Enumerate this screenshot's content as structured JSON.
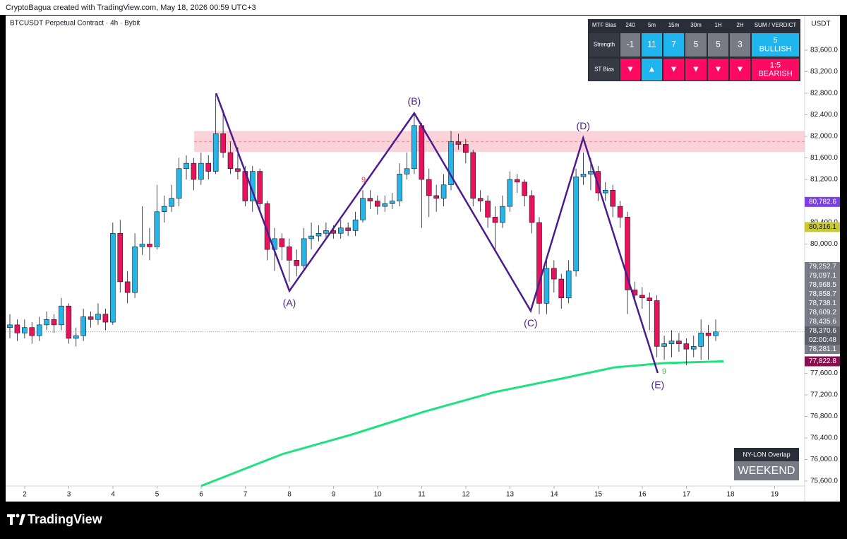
{
  "header": {
    "text": "CryptoBagua created with TradingView.com, May 18, 2026 00:59 UTC+3"
  },
  "chart_data": {
    "type": "candlestick",
    "title": "BTCUSDT Perpetual Contract · 4h · Bybit",
    "currency": "USDT",
    "up_color": "#26b5e8",
    "down_color": "#e8115a",
    "open": [
      78450,
      78500,
      78350,
      78450,
      78300,
      78500,
      78600,
      78500,
      78850,
      78250,
      78300,
      78650,
      78600,
      78700,
      78550,
      80200,
      79300,
      79100,
      79950,
      80000,
      79950,
      80600,
      80700,
      80850,
      81400,
      81500,
      81200,
      81500,
      81350,
      82050,
      81700,
      81400,
      81350,
      80800,
      81350,
      80750,
      79900,
      80100,
      79950,
      79700,
      79600,
      80100,
      80150,
      80200,
      80250,
      80200,
      80300,
      80250,
      80450,
      80850,
      80800,
      80700,
      80750,
      80800,
      81300,
      81400,
      82200,
      81200,
      80900,
      80850,
      81100,
      81900,
      81850,
      81700,
      80850,
      80800,
      80500,
      80400,
      80700,
      81200,
      81150,
      80900,
      80400,
      78900,
      79550,
      79350,
      79000,
      79500,
      81250,
      81300,
      81350,
      80950,
      81000,
      80700,
      80500,
      79150,
      79050,
      79000,
      78950,
      78100,
      78150,
      78200,
      78150,
      78050,
      78100,
      78350,
      78300
    ],
    "high": [
      78700,
      78600,
      78600,
      78550,
      78650,
      78750,
      78700,
      79000,
      78900,
      78450,
      78800,
      78750,
      78900,
      78800,
      80400,
      80450,
      79500,
      80200,
      80700,
      80300,
      81100,
      80900,
      81100,
      81600,
      81650,
      81600,
      81700,
      81650,
      82800,
      82500,
      81900,
      81800,
      81450,
      81450,
      81400,
      80800,
      80300,
      80200,
      80100,
      79900,
      80300,
      80400,
      80350,
      80400,
      80350,
      80450,
      80400,
      80600,
      81000,
      81000,
      80900,
      80900,
      80950,
      81500,
      81700,
      82450,
      82250,
      81400,
      81100,
      81300,
      82100,
      82050,
      81950,
      81750,
      81000,
      80900,
      80700,
      80900,
      81350,
      81300,
      81200,
      81000,
      80500,
      79700,
      79700,
      79450,
      79700,
      81400,
      81700,
      81600,
      81450,
      81150,
      81100,
      80800,
      80600,
      79300,
      79200,
      79100,
      79050,
      78300,
      78400,
      78350,
      78250,
      78300,
      78600,
      78500,
      78600
    ],
    "low": [
      78250,
      78200,
      78250,
      78150,
      78200,
      78400,
      78350,
      78400,
      78150,
      78100,
      78200,
      78450,
      78500,
      78400,
      78500,
      79100,
      78900,
      79000,
      79800,
      79700,
      79900,
      80400,
      80600,
      80700,
      81200,
      81000,
      81100,
      81200,
      81300,
      81600,
      81300,
      81200,
      80700,
      80600,
      80600,
      79700,
      79500,
      79700,
      79300,
      79400,
      79500,
      79900,
      80050,
      80100,
      80100,
      80100,
      80150,
      80150,
      80400,
      80650,
      80550,
      80600,
      80650,
      80700,
      81200,
      81300,
      80300,
      80500,
      80600,
      80700,
      81000,
      81750,
      81500,
      80700,
      80600,
      80300,
      79900,
      80300,
      80600,
      80950,
      80700,
      80200,
      78700,
      78700,
      79100,
      78800,
      78900,
      79400,
      81100,
      81000,
      80800,
      80800,
      80500,
      80300,
      78700,
      78900,
      78800,
      78400,
      77900,
      77850,
      77900,
      78000,
      77750,
      77900,
      77850,
      77850,
      78200
    ],
    "close": [
      78500,
      78350,
      78450,
      78300,
      78500,
      78600,
      78500,
      78850,
      78250,
      78300,
      78650,
      78600,
      78700,
      78550,
      80200,
      79300,
      79100,
      79950,
      80000,
      79950,
      80600,
      80700,
      80850,
      81400,
      81500,
      81200,
      81500,
      81350,
      82050,
      81700,
      81400,
      81350,
      80800,
      81350,
      80750,
      79900,
      80100,
      79950,
      79700,
      79600,
      80100,
      80150,
      80200,
      80250,
      80200,
      80300,
      80250,
      80450,
      80850,
      80800,
      80700,
      80750,
      80800,
      81300,
      81400,
      82200,
      81200,
      80900,
      80850,
      81100,
      81900,
      81850,
      81700,
      80850,
      80800,
      80500,
      80400,
      80700,
      81200,
      81150,
      80900,
      80400,
      78900,
      79550,
      79350,
      79000,
      79500,
      81250,
      81300,
      81350,
      80950,
      81000,
      80700,
      80500,
      79150,
      79050,
      79000,
      78950,
      78100,
      78150,
      78200,
      78150,
      78050,
      78100,
      78350,
      78300,
      78370.6
    ],
    "xlim": [
      1.568,
      19.68
    ],
    "xticks": [
      2,
      3,
      4,
      5,
      6,
      7,
      8,
      9,
      10,
      11,
      12,
      13,
      14,
      15,
      16,
      17,
      18,
      19
    ],
    "ylim": [
      75508,
      84243
    ],
    "yticks": [
      {
        "value": 83600,
        "label": "83,600.0"
      },
      {
        "value": 83200,
        "label": "83,200.0"
      },
      {
        "value": 82800,
        "label": "82,800.0"
      },
      {
        "value": 82400,
        "label": "82,400.0"
      },
      {
        "value": 82000,
        "label": "82,000.0"
      },
      {
        "value": 81600,
        "label": "81,600.0"
      },
      {
        "value": 81200,
        "label": "81,200.0"
      },
      {
        "value": 80400,
        "label": "80,400.0"
      },
      {
        "value": 80000,
        "label": "80,000.0"
      },
      {
        "value": 77600,
        "label": "77,600.0"
      },
      {
        "value": 77200,
        "label": "77,200.0"
      },
      {
        "value": 76800,
        "label": "76,800.0"
      },
      {
        "value": 76400,
        "label": "76,400.0"
      },
      {
        "value": 76000,
        "label": "76,000.0"
      },
      {
        "value": 75600,
        "label": "75,600.0"
      }
    ],
    "zone": {
      "range": [
        81710,
        82100
      ],
      "color": "#f8c8d0"
    },
    "ma": {
      "color": "#1de27e",
      "x": [
        6.0,
        7.84,
        9.44,
        11.04,
        12.64,
        14.24,
        15.36,
        16.48,
        17.84
      ],
      "values": [
        75510,
        76100,
        76470,
        76885,
        77250,
        77515,
        77710,
        77790,
        77822.8
      ]
    },
    "zigzag": {
      "color": "#4b1c8f",
      "x": [
        6.34,
        8.0,
        10.83,
        13.47,
        14.66,
        16.35
      ],
      "values": [
        82800,
        79130,
        82430,
        78760,
        81970,
        77607
      ],
      "labels": [
        null,
        "(A)",
        "(B)",
        "(C)",
        "(D)",
        "(E)"
      ],
      "positions": [
        null,
        "below",
        "above",
        "below",
        "above",
        "below"
      ]
    },
    "signals": [
      {
        "text": "9",
        "color": "#f23645"
      },
      {
        "text": "9",
        "color": "#4caf50"
      }
    ],
    "price_labels": [
      {
        "value": 80782.6,
        "label": "80,782.6",
        "color": "#7b3fe4",
        "text_color": "#ffffff"
      },
      {
        "value": 80316.1,
        "label": "80,316.1",
        "color": "#c9c934",
        "text_color": "#131722"
      },
      {
        "value": 77822.8,
        "label": "77,822.8",
        "color": "#880e4f",
        "text_color": "#ffffff"
      }
    ],
    "stack_labels": [
      {
        "value": 79252.7,
        "label": "79,252.7"
      },
      {
        "value": 79097.1,
        "label": "79,097.1"
      },
      {
        "value": 78968.5,
        "label": "78,968.5"
      },
      {
        "value": 78858.7,
        "label": "78,858.7"
      },
      {
        "value": 78738.1,
        "label": "78,738.1"
      },
      {
        "value": 78609.2,
        "label": "78,609.2"
      },
      {
        "value": 78435.6,
        "label": "78,435.6"
      },
      {
        "value": 78370.6,
        "label": "78,370.6",
        "countdown": "02:00:48"
      },
      {
        "value": 78281.1,
        "label": "78,281.1"
      }
    ]
  },
  "table": {
    "header": [
      "MTF Bias",
      "240",
      "5m",
      "15m",
      "30m",
      "1H",
      "2H",
      "SUM / VERDICT"
    ],
    "rows": [
      [
        "Strength",
        "-1",
        "11",
        "7",
        "5",
        "5",
        "3",
        [
          "5",
          "BULLISH"
        ]
      ],
      [
        "ST Bias",
        "▼",
        "▲",
        "▼",
        "▼",
        "▼",
        "▼",
        [
          "1:5",
          "BEARISH"
        ]
      ]
    ],
    "colors": [
      [
        "#363a45",
        "#787b86",
        "#1fb6f0",
        "#1fb6f0",
        "#787b86",
        "#787b86",
        "#787b86",
        "#1fb6f0"
      ],
      [
        "#363a45",
        "#ff0a62",
        "#1fb6f0",
        "#ff0a62",
        "#ff0a62",
        "#ff0a62",
        "#ff0a62",
        "#ff0a62"
      ]
    ]
  },
  "session": {
    "title": "NY-LON Overlap",
    "status": "WEEKEND"
  },
  "footer": {
    "brand": "TradingView"
  }
}
